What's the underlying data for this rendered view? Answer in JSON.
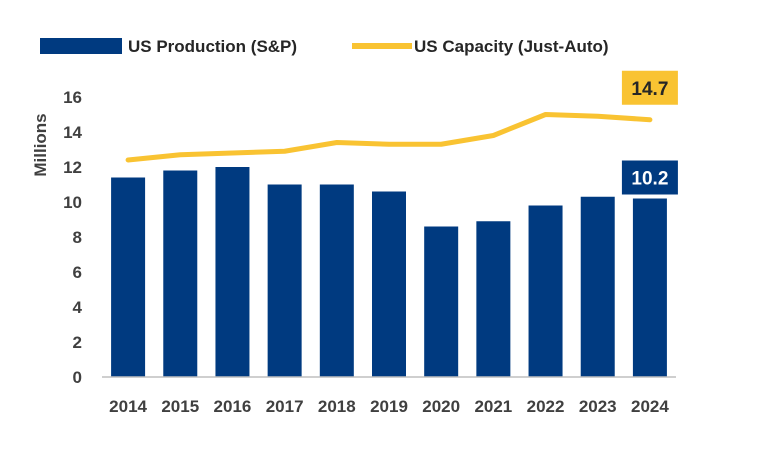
{
  "chart_data": {
    "type": "bar",
    "categories": [
      "2014",
      "2015",
      "2016",
      "2017",
      "2018",
      "2019",
      "2020",
      "2021",
      "2022",
      "2023",
      "2024"
    ],
    "series": [
      {
        "name": "US Production (S&P)",
        "kind": "bar",
        "color": "#003A80",
        "values": [
          11.4,
          11.8,
          12.0,
          11.0,
          11.0,
          10.6,
          8.6,
          8.9,
          9.8,
          10.3,
          10.2
        ]
      },
      {
        "name": "US Capacity (Just-Auto)",
        "kind": "line",
        "color": "#F9C332",
        "values": [
          12.4,
          12.7,
          12.8,
          12.9,
          13.4,
          13.3,
          13.3,
          13.8,
          15.0,
          14.9,
          14.7
        ]
      }
    ],
    "ylabel": "Millions",
    "ylim": [
      0,
      16
    ],
    "yticks": [
      "0",
      "2",
      "4",
      "6",
      "8",
      "10",
      "12",
      "14",
      "16"
    ],
    "grid": false,
    "legend": "top",
    "annotations": [
      {
        "series": 1,
        "index": 10,
        "text": "14.7"
      },
      {
        "series": 0,
        "index": 10,
        "text": "10.2"
      }
    ]
  }
}
